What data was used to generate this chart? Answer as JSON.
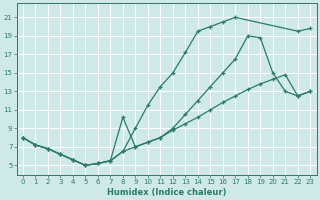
{
  "bg_color": "#cfe9e9",
  "grid_color": "#b0d4d4",
  "line_color": "#2a7a6a",
  "xlabel": "Humidex (Indice chaleur)",
  "xlim": [
    -0.5,
    23.5
  ],
  "ylim": [
    4.0,
    22.5
  ],
  "xticks": [
    0,
    1,
    2,
    3,
    4,
    5,
    6,
    7,
    8,
    9,
    10,
    11,
    12,
    13,
    14,
    15,
    16,
    17,
    18,
    19,
    20,
    21,
    22,
    23
  ],
  "yticks": [
    5,
    7,
    9,
    11,
    13,
    15,
    17,
    19,
    21
  ],
  "curve1_x": [
    0,
    1,
    2,
    3,
    4,
    5,
    6,
    7,
    8,
    9,
    10,
    11,
    12,
    13,
    14,
    15,
    16,
    17,
    22,
    23
  ],
  "curve1_y": [
    8.0,
    7.2,
    6.8,
    6.2,
    5.6,
    5.0,
    5.2,
    5.5,
    6.5,
    9.0,
    11.5,
    13.5,
    15.0,
    17.2,
    19.5,
    20.0,
    20.5,
    21.0,
    19.5,
    19.8
  ],
  "curve2_x": [
    0,
    1,
    2,
    3,
    4,
    5,
    6,
    7,
    8,
    9,
    10,
    11,
    12,
    13,
    14,
    15,
    16,
    17,
    18,
    19,
    20,
    21,
    22,
    23
  ],
  "curve2_y": [
    8.0,
    7.2,
    6.8,
    6.2,
    5.6,
    5.0,
    5.2,
    5.5,
    10.2,
    7.0,
    7.5,
    8.0,
    9.0,
    10.5,
    12.0,
    13.5,
    15.0,
    16.5,
    19.0,
    18.8,
    15.0,
    13.0,
    12.5,
    13.0
  ],
  "curve3_x": [
    0,
    1,
    2,
    3,
    4,
    5,
    6,
    7,
    8,
    9,
    10,
    11,
    12,
    13,
    14,
    15,
    16,
    17,
    18,
    19,
    20,
    21,
    22,
    23
  ],
  "curve3_y": [
    8.0,
    7.2,
    6.8,
    6.2,
    5.6,
    5.0,
    5.2,
    5.5,
    6.5,
    7.0,
    7.5,
    8.0,
    8.8,
    9.5,
    10.2,
    11.0,
    11.8,
    12.5,
    13.2,
    13.8,
    14.3,
    14.8,
    12.5,
    13.0
  ]
}
